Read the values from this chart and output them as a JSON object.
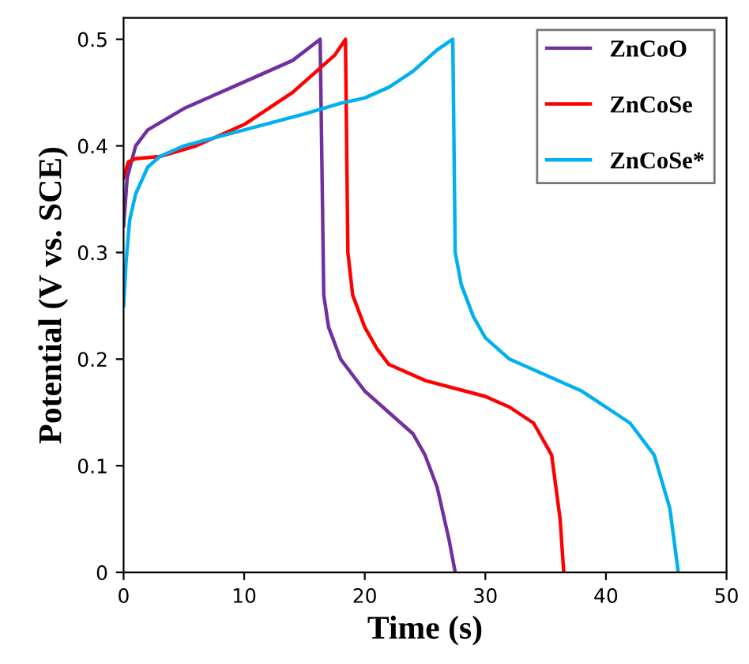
{
  "chart_data": {
    "type": "line",
    "xlabel": "Time (s)",
    "ylabel": "Potential (V vs. SCE)",
    "xlim": [
      0,
      50
    ],
    "ylim": [
      0,
      0.52
    ],
    "xticks": [
      0,
      10,
      20,
      30,
      40,
      50
    ],
    "yticks": [
      0,
      0.1,
      0.2,
      0.3,
      0.4,
      0.5
    ],
    "legend": "top right",
    "grid": false,
    "marker": "none",
    "line_style": "solid",
    "series": [
      {
        "name": "ZnCoO",
        "color": "#7030a0",
        "x": [
          0,
          0.3,
          1,
          2,
          5,
          10,
          14,
          16.3,
          16.6,
          17,
          18,
          20,
          22,
          24,
          25,
          26,
          27,
          27.5
        ],
        "values": [
          0.325,
          0.37,
          0.4,
          0.415,
          0.435,
          0.46,
          0.48,
          0.5,
          0.26,
          0.23,
          0.2,
          0.17,
          0.15,
          0.13,
          0.11,
          0.08,
          0.03,
          0
        ]
      },
      {
        "name": "ZnCoSe",
        "color": "#ff0000",
        "x": [
          0,
          0.4,
          1,
          3,
          6,
          10,
          14,
          16,
          17.5,
          18.4,
          18.6,
          19,
          20,
          21,
          22,
          25,
          30,
          32,
          34,
          35.5,
          36.2,
          36.5
        ],
        "values": [
          0.37,
          0.385,
          0.388,
          0.39,
          0.4,
          0.42,
          0.45,
          0.47,
          0.485,
          0.5,
          0.3,
          0.26,
          0.23,
          0.21,
          0.195,
          0.18,
          0.165,
          0.155,
          0.14,
          0.11,
          0.05,
          0
        ]
      },
      {
        "name": "ZnCoSe*",
        "color": "#00b0f0",
        "x": [
          0,
          0.2,
          0.5,
          1,
          2,
          3,
          5,
          10,
          15,
          18,
          20,
          22,
          24,
          26,
          27.3,
          27.5,
          28,
          29,
          30,
          32,
          35,
          38,
          40,
          42,
          44,
          45.3,
          46
        ],
        "values": [
          0.25,
          0.29,
          0.33,
          0.355,
          0.38,
          0.39,
          0.4,
          0.415,
          0.43,
          0.44,
          0.445,
          0.455,
          0.47,
          0.49,
          0.5,
          0.3,
          0.27,
          0.24,
          0.22,
          0.2,
          0.185,
          0.17,
          0.155,
          0.14,
          0.11,
          0.06,
          0
        ]
      }
    ]
  }
}
